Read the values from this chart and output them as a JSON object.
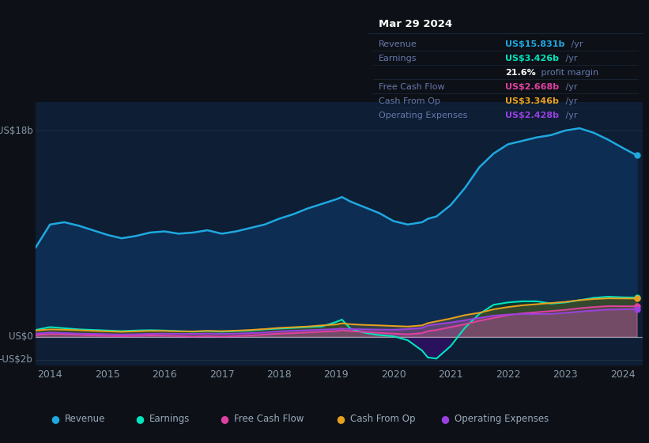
{
  "bg_color": "#0d1117",
  "plot_bg_color": "#0d1e35",
  "grid_color": "#1e2d42",
  "years": [
    2013.75,
    2014.0,
    2014.25,
    2014.5,
    2014.75,
    2015.0,
    2015.25,
    2015.5,
    2015.75,
    2016.0,
    2016.25,
    2016.5,
    2016.75,
    2017.0,
    2017.25,
    2017.5,
    2017.75,
    2018.0,
    2018.25,
    2018.5,
    2018.75,
    2019.0,
    2019.1,
    2019.25,
    2019.5,
    2019.75,
    2020.0,
    2020.25,
    2020.5,
    2020.6,
    2020.75,
    2021.0,
    2021.25,
    2021.5,
    2021.75,
    2022.0,
    2022.25,
    2022.5,
    2022.75,
    2023.0,
    2023.25,
    2023.5,
    2023.75,
    2024.0,
    2024.25
  ],
  "revenue": [
    7.8,
    9.8,
    10.0,
    9.7,
    9.3,
    8.9,
    8.6,
    8.8,
    9.1,
    9.2,
    9.0,
    9.1,
    9.3,
    9.0,
    9.2,
    9.5,
    9.8,
    10.3,
    10.7,
    11.2,
    11.6,
    12.0,
    12.2,
    11.8,
    11.3,
    10.8,
    10.1,
    9.8,
    10.0,
    10.3,
    10.5,
    11.5,
    13.0,
    14.8,
    16.0,
    16.8,
    17.1,
    17.4,
    17.6,
    18.0,
    18.2,
    17.8,
    17.2,
    16.5,
    15.831
  ],
  "earnings": [
    0.6,
    0.85,
    0.75,
    0.65,
    0.6,
    0.55,
    0.5,
    0.55,
    0.58,
    0.55,
    0.5,
    0.45,
    0.5,
    0.45,
    0.5,
    0.55,
    0.65,
    0.72,
    0.78,
    0.85,
    0.9,
    1.3,
    1.5,
    0.7,
    0.35,
    0.15,
    0.05,
    -0.3,
    -1.2,
    -1.8,
    -1.9,
    -0.8,
    0.8,
    2.0,
    2.8,
    3.0,
    3.1,
    3.1,
    2.9,
    3.0,
    3.2,
    3.4,
    3.5,
    3.45,
    3.426
  ],
  "free_cash_flow": [
    0.15,
    0.25,
    0.22,
    0.18,
    0.12,
    0.08,
    0.05,
    0.08,
    0.12,
    0.1,
    0.06,
    0.02,
    0.06,
    0.02,
    0.06,
    0.12,
    0.2,
    0.28,
    0.32,
    0.38,
    0.44,
    0.5,
    0.58,
    0.5,
    0.42,
    0.35,
    0.28,
    0.22,
    0.32,
    0.5,
    0.6,
    0.85,
    1.1,
    1.4,
    1.65,
    1.9,
    2.05,
    2.15,
    2.25,
    2.35,
    2.5,
    2.6,
    2.68,
    2.67,
    2.668
  ],
  "cash_from_op": [
    0.55,
    0.65,
    0.62,
    0.58,
    0.52,
    0.48,
    0.44,
    0.48,
    0.52,
    0.52,
    0.48,
    0.48,
    0.52,
    0.5,
    0.54,
    0.6,
    0.68,
    0.78,
    0.84,
    0.9,
    1.0,
    1.08,
    1.18,
    1.1,
    1.04,
    1.0,
    0.95,
    0.9,
    1.0,
    1.2,
    1.35,
    1.6,
    1.9,
    2.1,
    2.4,
    2.6,
    2.75,
    2.85,
    2.95,
    3.05,
    3.2,
    3.3,
    3.36,
    3.35,
    3.346
  ],
  "operating_expenses": [
    0.28,
    0.38,
    0.33,
    0.28,
    0.26,
    0.23,
    0.2,
    0.23,
    0.26,
    0.28,
    0.26,
    0.26,
    0.28,
    0.26,
    0.28,
    0.33,
    0.38,
    0.48,
    0.53,
    0.58,
    0.63,
    0.68,
    0.73,
    0.68,
    0.65,
    0.63,
    0.62,
    0.68,
    0.78,
    0.98,
    1.1,
    1.25,
    1.45,
    1.65,
    1.85,
    1.95,
    2.0,
    2.0,
    2.0,
    2.1,
    2.2,
    2.3,
    2.38,
    2.4,
    2.428
  ],
  "revenue_color": "#1fa8e0",
  "revenue_fill": "#0d2d52",
  "earnings_color": "#00e5be",
  "earnings_fill_pos": "#0d3530",
  "earnings_fill_neg": "#2d1060",
  "fcf_color": "#e040a0",
  "cashop_color": "#e8a020",
  "opex_color": "#9940e0",
  "ylim_min": -2.5,
  "ylim_max": 20.5,
  "ytick_vals": [
    -2,
    0,
    18
  ],
  "ytick_labels": [
    "-US$2b",
    "US$0",
    "US$18b"
  ],
  "xtick_vals": [
    2014,
    2015,
    2016,
    2017,
    2018,
    2019,
    2020,
    2021,
    2022,
    2023,
    2024
  ],
  "xtick_labels": [
    "2014",
    "2015",
    "2016",
    "2017",
    "2018",
    "2019",
    "2020",
    "2021",
    "2022",
    "2023",
    "2024"
  ],
  "legend_items": [
    "Revenue",
    "Earnings",
    "Free Cash Flow",
    "Cash From Op",
    "Operating Expenses"
  ],
  "legend_colors": [
    "#1fa8e0",
    "#00e5be",
    "#e040a0",
    "#e8a020",
    "#9940e0"
  ],
  "info_box": {
    "date": "Mar 29 2024",
    "rows": [
      {
        "label": "Revenue",
        "value": "US$15.831b",
        "unit": " /yr",
        "value_color": "#1fa8e0"
      },
      {
        "label": "Earnings",
        "value": "US$3.426b",
        "unit": " /yr",
        "value_color": "#00e5be"
      },
      {
        "label": "",
        "value": "21.6%",
        "unit": " profit margin",
        "value_color": "#ffffff"
      },
      {
        "label": "Free Cash Flow",
        "value": "US$2.668b",
        "unit": " /yr",
        "value_color": "#e040a0"
      },
      {
        "label": "Cash From Op",
        "value": "US$3.346b",
        "unit": " /yr",
        "value_color": "#e8a020"
      },
      {
        "label": "Operating Expenses",
        "value": "US$2.428b",
        "unit": " /yr",
        "value_color": "#9940e0"
      }
    ]
  }
}
